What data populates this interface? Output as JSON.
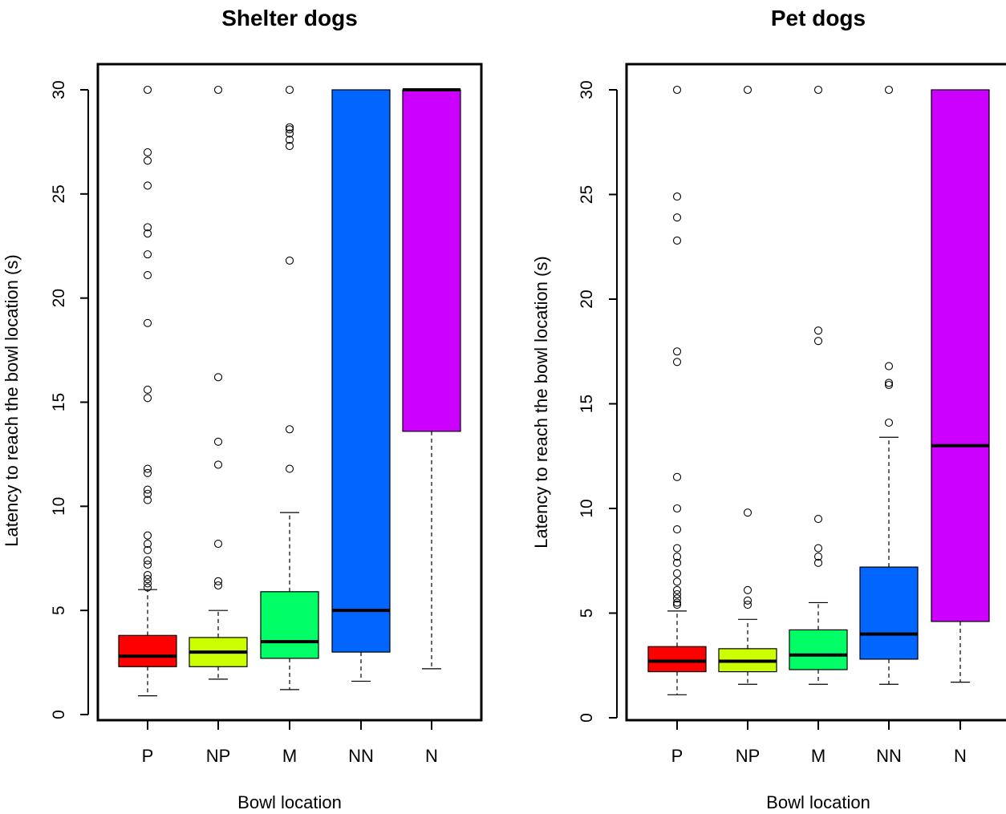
{
  "chart_data": [
    {
      "type": "boxplot",
      "title": "Shelter dogs",
      "xlabel": "Bowl location",
      "ylabel": "Latency to reach the bowl location (s)",
      "ylim": [
        0,
        30
      ],
      "yticks": [
        "0",
        "5",
        "10",
        "15",
        "20",
        "25",
        "30"
      ],
      "categories": [
        "P",
        "NP",
        "M",
        "NN",
        "N"
      ],
      "boxes": [
        {
          "category": "P",
          "color": "#ff0000",
          "whisker_low": 0.9,
          "q1": 2.3,
          "median": 2.8,
          "q3": 3.8,
          "whisker_high": 6.0,
          "outliers": [
            6.1,
            6.3,
            6.5,
            6.7,
            7.2,
            7.4,
            7.9,
            8.2,
            8.6,
            10.3,
            10.6,
            10.8,
            11.6,
            11.8,
            15.2,
            15.6,
            18.8,
            21.1,
            22.1,
            23.1,
            23.4,
            25.4,
            26.6,
            27.0,
            30.0
          ]
        },
        {
          "category": "NP",
          "color": "#ccff00",
          "whisker_low": 1.7,
          "q1": 2.3,
          "median": 3.0,
          "q3": 3.7,
          "whisker_high": 5.0,
          "outliers": [
            6.2,
            6.4,
            8.2,
            12.0,
            13.1,
            16.2,
            30.0
          ]
        },
        {
          "category": "M",
          "color": "#00ff66",
          "whisker_low": 1.2,
          "q1": 2.7,
          "median": 3.5,
          "q3": 5.9,
          "whisker_high": 9.7,
          "outliers": [
            11.8,
            13.7,
            21.8,
            27.3,
            27.6,
            27.9,
            28.1,
            28.2,
            30.0
          ]
        },
        {
          "category": "NN",
          "color": "#0066ff",
          "whisker_low": 1.6,
          "q1": 3.0,
          "median": 5.0,
          "q3": 30.0,
          "whisker_high": 30.0,
          "outliers": []
        },
        {
          "category": "N",
          "color": "#cc00ff",
          "whisker_low": 2.2,
          "q1": 13.6,
          "median": 30.0,
          "q3": 30.0,
          "whisker_high": 30.0,
          "outliers": []
        }
      ]
    },
    {
      "type": "boxplot",
      "title": "Pet dogs",
      "xlabel": "Bowl location",
      "ylabel": "Latency to reach the bowl location (s)",
      "ylim": [
        0,
        30
      ],
      "yticks": [
        "0",
        "5",
        "10",
        "15",
        "20",
        "25",
        "30"
      ],
      "categories": [
        "P",
        "NP",
        "M",
        "NN",
        "N"
      ],
      "boxes": [
        {
          "category": "P",
          "color": "#ff0000",
          "whisker_low": 1.1,
          "q1": 2.2,
          "median": 2.7,
          "q3": 3.4,
          "whisker_high": 5.1,
          "outliers": [
            5.4,
            5.5,
            5.7,
            5.9,
            6.1,
            6.5,
            6.9,
            7.4,
            7.7,
            8.1,
            9.0,
            10.0,
            11.5,
            17.0,
            17.5,
            22.8,
            23.9,
            24.9,
            30.0
          ]
        },
        {
          "category": "NP",
          "color": "#ccff00",
          "whisker_low": 1.6,
          "q1": 2.2,
          "median": 2.7,
          "q3": 3.3,
          "whisker_high": 4.7,
          "outliers": [
            5.4,
            5.6,
            6.1,
            9.8,
            30.0
          ]
        },
        {
          "category": "M",
          "color": "#00ff66",
          "whisker_low": 1.6,
          "q1": 2.3,
          "median": 3.0,
          "q3": 4.2,
          "whisker_high": 5.5,
          "outliers": [
            7.4,
            7.7,
            8.1,
            9.5,
            18.0,
            18.5,
            30.0
          ]
        },
        {
          "category": "NN",
          "color": "#0066ff",
          "whisker_low": 1.6,
          "q1": 2.8,
          "median": 4.0,
          "q3": 7.2,
          "whisker_high": 13.4,
          "outliers": [
            14.1,
            15.9,
            16.0,
            16.8,
            30.0
          ]
        },
        {
          "category": "N",
          "color": "#cc00ff",
          "whisker_low": 1.7,
          "q1": 4.6,
          "median": 13.0,
          "q3": 30.0,
          "whisker_high": 30.0,
          "outliers": []
        }
      ]
    }
  ]
}
